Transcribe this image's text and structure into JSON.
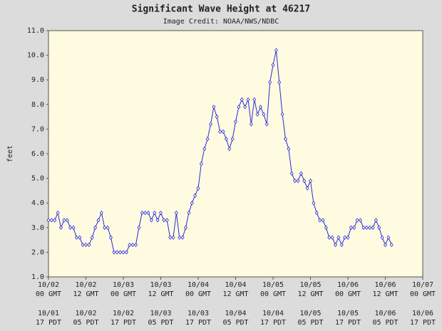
{
  "chart_data": {
    "type": "line",
    "title": "Significant Wave Height at 46217",
    "subtitle": "Image Credit: NOAA/NWS/NDBC",
    "ylabel": "feet",
    "x": [
      "10/02 00 GMT",
      "10/02 01 GMT",
      "10/02 02 GMT",
      "10/02 03 GMT",
      "10/02 04 GMT",
      "10/02 05 GMT",
      "10/02 06 GMT",
      "10/02 07 GMT",
      "10/02 08 GMT",
      "10/02 09 GMT",
      "10/02 10 GMT",
      "10/02 11 GMT",
      "10/02 12 GMT",
      "10/02 13 GMT",
      "10/02 14 GMT",
      "10/02 15 GMT",
      "10/02 16 GMT",
      "10/02 17 GMT",
      "10/02 18 GMT",
      "10/02 19 GMT",
      "10/02 20 GMT",
      "10/02 21 GMT",
      "10/02 22 GMT",
      "10/02 23 GMT",
      "10/03 00 GMT",
      "10/03 01 GMT",
      "10/03 02 GMT",
      "10/03 03 GMT",
      "10/03 04 GMT",
      "10/03 05 GMT",
      "10/03 06 GMT",
      "10/03 07 GMT",
      "10/03 08 GMT",
      "10/03 09 GMT",
      "10/03 10 GMT",
      "10/03 11 GMT",
      "10/03 12 GMT",
      "10/03 13 GMT",
      "10/03 14 GMT",
      "10/03 15 GMT",
      "10/03 16 GMT",
      "10/03 17 GMT",
      "10/03 18 GMT",
      "10/03 19 GMT",
      "10/03 20 GMT",
      "10/03 21 GMT",
      "10/03 22 GMT",
      "10/03 23 GMT",
      "10/04 00 GMT",
      "10/04 01 GMT",
      "10/04 02 GMT",
      "10/04 03 GMT",
      "10/04 04 GMT",
      "10/04 05 GMT",
      "10/04 06 GMT",
      "10/04 07 GMT",
      "10/04 08 GMT",
      "10/04 09 GMT",
      "10/04 10 GMT",
      "10/04 11 GMT",
      "10/04 12 GMT",
      "10/04 13 GMT",
      "10/04 14 GMT",
      "10/04 15 GMT",
      "10/04 16 GMT",
      "10/04 17 GMT",
      "10/04 18 GMT",
      "10/04 19 GMT",
      "10/04 20 GMT",
      "10/04 21 GMT",
      "10/04 22 GMT",
      "10/04 23 GMT",
      "10/05 00 GMT",
      "10/05 01 GMT",
      "10/05 02 GMT",
      "10/05 03 GMT",
      "10/05 04 GMT",
      "10/05 05 GMT",
      "10/05 06 GMT",
      "10/05 07 GMT",
      "10/05 08 GMT",
      "10/05 09 GMT",
      "10/05 10 GMT",
      "10/05 11 GMT",
      "10/05 12 GMT",
      "10/05 13 GMT",
      "10/05 14 GMT",
      "10/05 15 GMT",
      "10/05 16 GMT",
      "10/05 17 GMT",
      "10/05 18 GMT",
      "10/05 19 GMT",
      "10/05 20 GMT",
      "10/05 21 GMT",
      "10/05 22 GMT",
      "10/05 23 GMT",
      "10/06 00 GMT",
      "10/06 01 GMT",
      "10/06 02 GMT",
      "10/06 03 GMT",
      "10/06 04 GMT",
      "10/06 05 GMT",
      "10/06 06 GMT",
      "10/06 07 GMT",
      "10/06 08 GMT",
      "10/06 09 GMT",
      "10/06 10 GMT",
      "10/06 11 GMT",
      "10/06 12 GMT",
      "10/06 13 GMT",
      "10/06 14 GMT"
    ],
    "series": [
      {
        "color": "#2a2ad8",
        "values": [
          3.3,
          3.3,
          3.3,
          3.6,
          3.0,
          3.3,
          3.3,
          3.0,
          3.0,
          2.6,
          2.6,
          2.3,
          2.3,
          2.3,
          2.6,
          3.0,
          3.3,
          3.6,
          3.0,
          3.0,
          2.6,
          2.0,
          2.0,
          2.0,
          2.0,
          2.0,
          2.3,
          2.3,
          2.3,
          3.0,
          3.6,
          3.6,
          3.6,
          3.3,
          3.6,
          3.3,
          3.6,
          3.3,
          3.3,
          2.6,
          2.6,
          3.6,
          2.6,
          2.6,
          3.0,
          3.6,
          4.0,
          4.3,
          4.6,
          5.6,
          6.2,
          6.6,
          7.2,
          7.9,
          7.5,
          6.9,
          6.9,
          6.6,
          6.2,
          6.6,
          7.3,
          7.9,
          8.2,
          7.9,
          8.2,
          7.2,
          8.2,
          7.6,
          7.9,
          7.6,
          7.2,
          8.9,
          9.6,
          10.2,
          8.9,
          7.6,
          6.6,
          6.2,
          5.2,
          4.9,
          4.9,
          5.2,
          4.9,
          4.6,
          4.9,
          4.0,
          3.6,
          3.3,
          3.3,
          3.0,
          2.6,
          2.6,
          2.3,
          2.6,
          2.3,
          2.6,
          2.6,
          3.0,
          3.0,
          3.3,
          3.3,
          3.0,
          3.0,
          3.0,
          3.0,
          3.3,
          3.0,
          2.6,
          2.3,
          2.6,
          2.3
        ]
      }
    ],
    "xlim": [
      "10/02 00 GMT",
      "10/07 00 GMT"
    ],
    "xticks": [
      "10/02 00 GMT",
      "10/02 12 GMT",
      "10/03 00 GMT",
      "10/03 12 GMT",
      "10/04 00 GMT",
      "10/04 12 GMT",
      "10/05 00 GMT",
      "10/05 12 GMT",
      "10/06 00 GMT",
      "10/06 12 GMT",
      "10/07 00 GMT"
    ],
    "x2ticks": [
      "10/01 17 PDT",
      "10/02 05 PDT",
      "10/02 17 PDT",
      "10/03 05 PDT",
      "10/03 17 PDT",
      "10/04 05 PDT",
      "10/04 17 PDT",
      "10/05 05 PDT",
      "10/05 17 PDT",
      "10/06 05 PDT",
      "10/06 17 PDT"
    ],
    "ylim": [
      1,
      11
    ],
    "yticks": [
      {
        "value": 1,
        "label": "1.0"
      },
      {
        "value": 2,
        "label": "2.0"
      },
      {
        "value": 3,
        "label": "3.0"
      },
      {
        "value": 4,
        "label": "4.0"
      },
      {
        "value": 5,
        "label": "5.0"
      },
      {
        "value": 6,
        "label": "6.0"
      },
      {
        "value": 7,
        "label": "7.0"
      },
      {
        "value": 8,
        "label": "8.0"
      },
      {
        "value": 9,
        "label": "9.0"
      },
      {
        "value": 10,
        "label": "10.0"
      },
      {
        "value": 11,
        "label": "11.0"
      }
    ],
    "grid": false
  }
}
